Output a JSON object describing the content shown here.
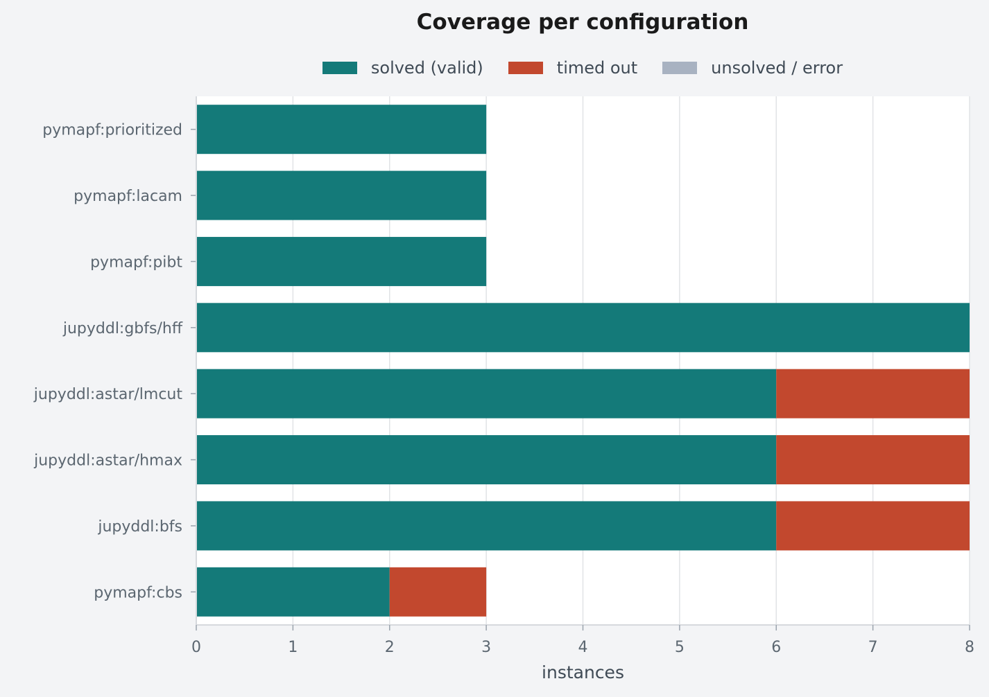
{
  "chart_data": {
    "type": "bar",
    "orientation": "horizontal",
    "stacked": true,
    "title": "Coverage per configuration",
    "xlabel": "instances",
    "ylabel": "",
    "xlim": [
      0,
      8
    ],
    "xticks": [
      0,
      1,
      2,
      3,
      4,
      5,
      6,
      7,
      8
    ],
    "grid": "vertical",
    "legend_position": "top-center",
    "categories": [
      "pymapf:prioritized",
      "pymapf:lacam",
      "pymapf:pibt",
      "jupyddl:gbfs/hff",
      "jupyddl:astar/lmcut",
      "jupyddl:astar/hmax",
      "jupyddl:bfs",
      "pymapf:cbs"
    ],
    "series": [
      {
        "name": "solved (valid)",
        "color": "#147a79",
        "values": [
          3,
          3,
          3,
          8,
          6,
          6,
          6,
          2
        ]
      },
      {
        "name": "timed out",
        "color": "#c2482e",
        "values": [
          0,
          0,
          0,
          0,
          2,
          2,
          2,
          1
        ]
      },
      {
        "name": "unsolved / error",
        "color": "#a8b2c1",
        "values": [
          0,
          0,
          0,
          0,
          0,
          0,
          0,
          0
        ]
      }
    ]
  }
}
